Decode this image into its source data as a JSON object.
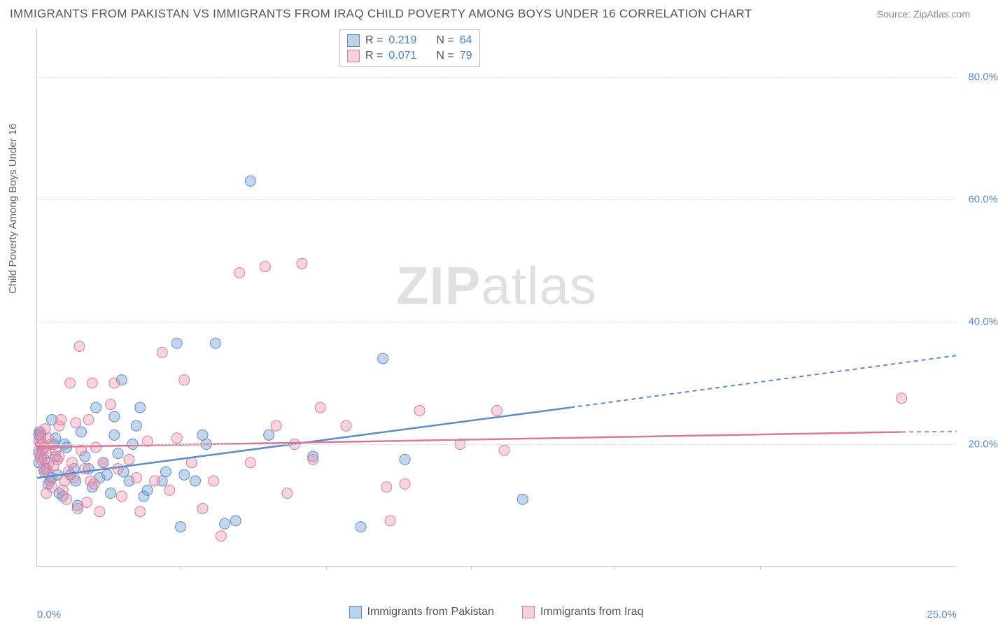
{
  "title": "IMMIGRANTS FROM PAKISTAN VS IMMIGRANTS FROM IRAQ CHILD POVERTY AMONG BOYS UNDER 16 CORRELATION CHART",
  "source": "Source: ZipAtlas.com",
  "y_axis_label": "Child Poverty Among Boys Under 16",
  "watermark_bold": "ZIP",
  "watermark_rest": "atlas",
  "chart": {
    "type": "scatter",
    "xlim": [
      0,
      25
    ],
    "ylim": [
      0,
      88
    ],
    "x_ticks": [
      0,
      25
    ],
    "x_tick_labels": [
      "0.0%",
      "25.0%"
    ],
    "x_minor_ticks": [
      3.9,
      7.85,
      11.8,
      15.7,
      19.65
    ],
    "y_ticks": [
      20,
      40,
      60,
      80
    ],
    "y_tick_labels": [
      "20.0%",
      "40.0%",
      "60.0%",
      "80.0%"
    ],
    "background_color": "#ffffff",
    "grid_color": "#dddddd",
    "axis_color": "#cccccc",
    "series": [
      {
        "name": "Immigrants from Pakistan",
        "key": "pakistan",
        "color": "#5b8bc9",
        "fill": "rgba(120,165,215,0.45)",
        "stroke": "#5b8bc9",
        "r_value": "0.219",
        "n_value": "64",
        "trend": {
          "x1": 0,
          "y1": 14.5,
          "x2": 14.5,
          "y2": 26,
          "extend_x2": 25,
          "extend_y2": 34.5
        },
        "points": [
          [
            0.05,
            17
          ],
          [
            0.05,
            18.5
          ],
          [
            0.06,
            22
          ],
          [
            0.1,
            20
          ],
          [
            0.1,
            21.5
          ],
          [
            0.15,
            19
          ],
          [
            0.2,
            15.5
          ],
          [
            0.2,
            17.5
          ],
          [
            0.25,
            16
          ],
          [
            0.3,
            13.5
          ],
          [
            0.35,
            14
          ],
          [
            0.4,
            14.5
          ],
          [
            0.4,
            24
          ],
          [
            0.45,
            20
          ],
          [
            0.5,
            18
          ],
          [
            0.5,
            21
          ],
          [
            0.55,
            15
          ],
          [
            0.6,
            12
          ],
          [
            0.7,
            11.5
          ],
          [
            0.75,
            20
          ],
          [
            0.8,
            19.5
          ],
          [
            0.9,
            15
          ],
          [
            1.0,
            16
          ],
          [
            1.05,
            14
          ],
          [
            1.1,
            10
          ],
          [
            1.2,
            22
          ],
          [
            1.3,
            18
          ],
          [
            1.4,
            16
          ],
          [
            1.5,
            13
          ],
          [
            1.6,
            26
          ],
          [
            1.7,
            14.5
          ],
          [
            1.8,
            17
          ],
          [
            1.9,
            15
          ],
          [
            2.0,
            12
          ],
          [
            2.1,
            21.5
          ],
          [
            2.1,
            24.5
          ],
          [
            2.2,
            18.5
          ],
          [
            2.3,
            30.5
          ],
          [
            2.35,
            15.5
          ],
          [
            2.5,
            14
          ],
          [
            2.6,
            20
          ],
          [
            2.7,
            23
          ],
          [
            2.8,
            26
          ],
          [
            2.9,
            11.5
          ],
          [
            3.0,
            12.5
          ],
          [
            3.4,
            14
          ],
          [
            3.5,
            15.5
          ],
          [
            3.8,
            36.5
          ],
          [
            3.9,
            6.5
          ],
          [
            4.0,
            15
          ],
          [
            4.3,
            14
          ],
          [
            4.5,
            21.5
          ],
          [
            4.6,
            20
          ],
          [
            4.85,
            36.5
          ],
          [
            5.1,
            7
          ],
          [
            5.4,
            7.5
          ],
          [
            5.8,
            63
          ],
          [
            6.3,
            21.5
          ],
          [
            7.5,
            18
          ],
          [
            8.8,
            6.5
          ],
          [
            9.4,
            34
          ],
          [
            10.0,
            17.5
          ],
          [
            13.2,
            11
          ],
          [
            0.05,
            21.5
          ]
        ]
      },
      {
        "name": "Immigrants from Iraq",
        "key": "iraq",
        "color": "#d77a9a",
        "fill": "rgba(235,150,175,0.4)",
        "stroke": "#d77a9a",
        "r_value": "0.071",
        "n_value": "79",
        "trend": {
          "x1": 0,
          "y1": 19.5,
          "x2": 23.5,
          "y2": 22,
          "extend_x2": 25,
          "extend_y2": 22.1
        },
        "points": [
          [
            0.05,
            19
          ],
          [
            0.05,
            20.5
          ],
          [
            0.08,
            22
          ],
          [
            0.1,
            18
          ],
          [
            0.1,
            21
          ],
          [
            0.12,
            17.5
          ],
          [
            0.15,
            20
          ],
          [
            0.18,
            16
          ],
          [
            0.2,
            19.5
          ],
          [
            0.22,
            22.5
          ],
          [
            0.25,
            18.5
          ],
          [
            0.3,
            15.5
          ],
          [
            0.32,
            17
          ],
          [
            0.35,
            14
          ],
          [
            0.38,
            20
          ],
          [
            0.4,
            13
          ],
          [
            0.45,
            16.5
          ],
          [
            0.5,
            19
          ],
          [
            0.55,
            17.5
          ],
          [
            0.6,
            18
          ],
          [
            0.6,
            23
          ],
          [
            0.65,
            24
          ],
          [
            0.7,
            12.5
          ],
          [
            0.75,
            14
          ],
          [
            0.8,
            11
          ],
          [
            0.85,
            15.5
          ],
          [
            0.9,
            30
          ],
          [
            0.95,
            17
          ],
          [
            1.0,
            14.5
          ],
          [
            1.05,
            23.5
          ],
          [
            1.1,
            9.5
          ],
          [
            1.15,
            36
          ],
          [
            1.2,
            19
          ],
          [
            1.3,
            16
          ],
          [
            1.35,
            10.5
          ],
          [
            1.4,
            24
          ],
          [
            1.45,
            14
          ],
          [
            1.5,
            30
          ],
          [
            1.55,
            13.5
          ],
          [
            1.6,
            19.5
          ],
          [
            1.7,
            9
          ],
          [
            1.8,
            17
          ],
          [
            2.0,
            26.5
          ],
          [
            2.1,
            30
          ],
          [
            2.2,
            16
          ],
          [
            2.3,
            11.5
          ],
          [
            2.5,
            17.5
          ],
          [
            2.7,
            14.5
          ],
          [
            2.8,
            9
          ],
          [
            3.0,
            20.5
          ],
          [
            3.2,
            14
          ],
          [
            3.4,
            35
          ],
          [
            3.6,
            12.5
          ],
          [
            3.8,
            21
          ],
          [
            4.0,
            30.5
          ],
          [
            4.2,
            17
          ],
          [
            4.5,
            9.5
          ],
          [
            4.8,
            14
          ],
          [
            5.0,
            5
          ],
          [
            5.5,
            48
          ],
          [
            5.8,
            17
          ],
          [
            6.2,
            49
          ],
          [
            6.5,
            23
          ],
          [
            6.8,
            12
          ],
          [
            7.0,
            20
          ],
          [
            7.2,
            49.5
          ],
          [
            7.5,
            17.5
          ],
          [
            7.7,
            26
          ],
          [
            8.4,
            23
          ],
          [
            9.5,
            13
          ],
          [
            9.6,
            7.5
          ],
          [
            10.0,
            13.5
          ],
          [
            10.4,
            25.5
          ],
          [
            11.5,
            20
          ],
          [
            12.5,
            25.5
          ],
          [
            12.7,
            19
          ],
          [
            0.25,
            12
          ],
          [
            0.3,
            21
          ],
          [
            23.5,
            27.5
          ]
        ]
      }
    ],
    "legend_labels": {
      "r_prefix": "R = ",
      "n_prefix": "N = "
    },
    "bottom_legend": [
      {
        "label": "Immigrants from Pakistan",
        "swatch": "blue"
      },
      {
        "label": "Immigrants from Iraq",
        "swatch": "pink"
      }
    ]
  }
}
